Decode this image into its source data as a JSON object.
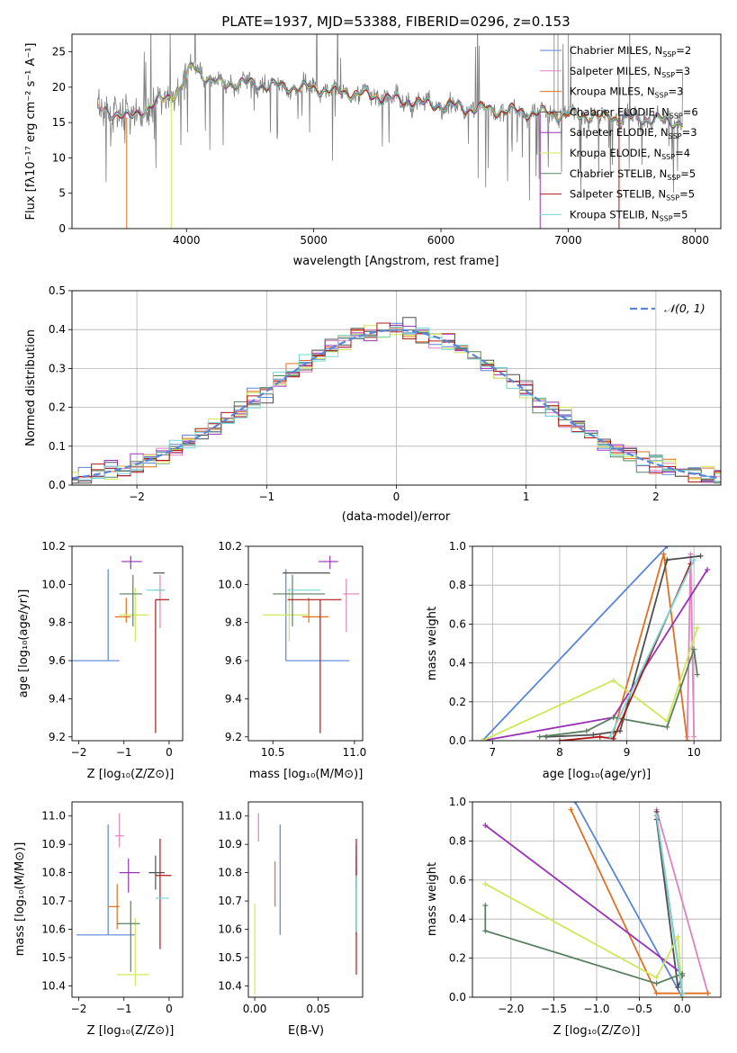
{
  "figure_title": "PLATE=1937, MJD=53388, FIBERID=0296, z=0.153",
  "series_colors": {
    "Chabrier MILES": "#5a84d6",
    "Salpeter MILES": "#e082c0",
    "Kroupa MILES": "#e07020",
    "Chabrier ELODIE": "#4f4f4f",
    "Salpeter ELODIE": "#9932b8",
    "Kroupa ELODIE": "#cfe858",
    "Chabrier STELIB": "#5a8060",
    "Salpeter STELIB": "#b01818",
    "Kroupa STELIB": "#70d8d8",
    "data": "#7f7f7f"
  },
  "chart_data": [
    {
      "id": "spectrum",
      "type": "line",
      "xlabel": "wavelength [Angstrom, rest frame]",
      "ylabel": "Flux [fλ10⁻¹⁷ erg cm⁻² s⁻¹ A⁻¹]",
      "xlim": [
        3100,
        8200
      ],
      "ylim": [
        0,
        27.5
      ],
      "xticks": [
        4000,
        5000,
        6000,
        7000,
        8000
      ],
      "yticks": [
        0,
        5,
        10,
        15,
        20,
        25
      ],
      "grid": false,
      "legend_position": "upper right",
      "legend": [
        {
          "label": "Chabrier MILES, N",
          "sub": "SSP",
          "suffix": "=2",
          "series": "Chabrier MILES"
        },
        {
          "label": "Salpeter MILES, N",
          "sub": "SSP",
          "suffix": "=3",
          "series": "Salpeter MILES"
        },
        {
          "label": "Kroupa MILES, N",
          "sub": "SSP",
          "suffix": "=3",
          "series": "Kroupa MILES"
        },
        {
          "label": "Chabrier ELODIE, N",
          "sub": "SSP",
          "suffix": "=6",
          "series": "Chabrier ELODIE"
        },
        {
          "label": "Salpeter ELODIE, N",
          "sub": "SSP",
          "suffix": "=3",
          "series": "Salpeter ELODIE"
        },
        {
          "label": "Kroupa ELODIE, N",
          "sub": "SSP",
          "suffix": "=4",
          "series": "Kroupa ELODIE"
        },
        {
          "label": "Chabrier STELIB, N",
          "sub": "SSP",
          "suffix": "=5",
          "series": "Chabrier STELIB"
        },
        {
          "label": "Salpeter STELIB, N",
          "sub": "SSP",
          "suffix": "=5",
          "series": "Salpeter STELIB"
        },
        {
          "label": "Kroupa STELIB, N",
          "sub": "SSP",
          "suffix": "=5",
          "series": "Kroupa STELIB"
        }
      ],
      "continuum": {
        "x": [
          3300,
          3450,
          3550,
          3700,
          3850,
          3950,
          4050,
          4200,
          4400,
          4700,
          5000,
          5300,
          5600,
          5900,
          6200,
          6500,
          6800,
          7100,
          7400,
          7700,
          7900
        ],
        "y": [
          16.8,
          16.3,
          15.6,
          17.2,
          18.6,
          19.6,
          23.2,
          20.6,
          20.6,
          20.2,
          19.8,
          19.2,
          18.4,
          17.6,
          17.1,
          16.7,
          16.3,
          16.0,
          15.7,
          15.4,
          15.0
        ]
      },
      "model_dropouts": [
        {
          "series": "Kroupa MILES",
          "x": 3530,
          "to_y": 0
        },
        {
          "series": "Kroupa ELODIE",
          "x": 3880,
          "to_y": 0
        },
        {
          "series": "Salpeter ELODIE",
          "x": 6780,
          "to_y": 0
        },
        {
          "series": "Salpeter STELIB",
          "x": 7400,
          "to_y": 0
        }
      ]
    },
    {
      "id": "residual-histogram",
      "type": "histogram",
      "xlabel": "(data-model)/error",
      "ylabel": "Normed distribution",
      "xlim": [
        -2.5,
        2.5
      ],
      "ylim": [
        0,
        0.5
      ],
      "xticks": [
        -2,
        -1,
        0,
        1,
        2
      ],
      "yticks": [
        0.0,
        0.1,
        0.2,
        0.3,
        0.4,
        0.5
      ],
      "grid": true,
      "bin_width": 0.1,
      "reference_curve": {
        "label": "𝒩(0, 1)",
        "mean": 0,
        "sigma": 1,
        "color": "#5a84d6",
        "style": "dashed"
      },
      "legend_position": "upper right"
    },
    {
      "id": "age-vs-Z",
      "type": "errorbar",
      "xlabel": "Z [log₁₀(Z/Z⊙)]",
      "ylabel": "age  [log₁₀(age/yr)]",
      "xlim": [
        -2.15,
        0.3
      ],
      "ylim": [
        9.18,
        10.2
      ],
      "xticks": [
        -2,
        -1,
        0
      ],
      "yticks": [
        9.2,
        9.4,
        9.6,
        9.8,
        10.0,
        10.2
      ],
      "points": [
        {
          "series": "Chabrier MILES",
          "x": -1.35,
          "xerr": [
            0.85,
            0.25
          ],
          "y": 9.6,
          "yerr": [
            0.0,
            0.48
          ]
        },
        {
          "series": "Salpeter MILES",
          "x": -0.2,
          "xerr": [
            0.1,
            0.1
          ],
          "y": 9.97,
          "yerr": [
            0.2,
            0.08
          ]
        },
        {
          "series": "Kroupa MILES",
          "x": -0.95,
          "xerr": [
            0.25,
            0.1
          ],
          "y": 9.83,
          "yerr": [
            0.03,
            0.1
          ]
        },
        {
          "series": "Chabrier ELODIE",
          "x": -0.35,
          "xerr": [
            0.0,
            0.25
          ],
          "y": 10.06,
          "yerr": [
            0.0,
            0.0
          ]
        },
        {
          "series": "Salpeter ELODIE",
          "x": -0.85,
          "xerr": [
            0.2,
            0.25
          ],
          "y": 10.12,
          "yerr": [
            0.04,
            0.03
          ]
        },
        {
          "series": "Kroupa ELODIE",
          "x": -0.75,
          "xerr": [
            0.35,
            0.3
          ],
          "y": 9.84,
          "yerr": [
            0.14,
            0.14
          ]
        },
        {
          "series": "Chabrier STELIB",
          "x": -0.8,
          "xerr": [
            0.3,
            0.2
          ],
          "y": 9.95,
          "yerr": [
            0.17,
            0.1
          ]
        },
        {
          "series": "Salpeter STELIB",
          "x": -0.3,
          "xerr": [
            0.0,
            0.3
          ],
          "y": 9.92,
          "yerr": [
            0.7,
            0.0
          ]
        },
        {
          "series": "Kroupa STELIB",
          "x": -0.3,
          "xerr": [
            0.2,
            0.2
          ],
          "y": 9.97,
          "yerr": [
            0.0,
            0.0
          ]
        }
      ]
    },
    {
      "id": "age-vs-mass",
      "type": "errorbar",
      "xlabel": "mass [log₁₀(M/M⊙)]",
      "ylabel": "",
      "xlim": [
        10.35,
        11.05
      ],
      "ylim": [
        9.18,
        10.2
      ],
      "xticks": [
        10.5,
        11.0
      ],
      "yticks": [
        9.2,
        9.4,
        9.6,
        9.8,
        10.0,
        10.2
      ],
      "points": [
        {
          "series": "Chabrier MILES",
          "x": 10.58,
          "xerr": [
            0.0,
            0.39
          ],
          "y": 9.6,
          "yerr": [
            0.0,
            0.48
          ]
        },
        {
          "series": "Salpeter MILES",
          "x": 10.95,
          "xerr": [
            0.02,
            0.08
          ],
          "y": 9.95,
          "yerr": [
            0.2,
            0.08
          ]
        },
        {
          "series": "Kroupa MILES",
          "x": 10.72,
          "xerr": [
            0.04,
            0.12
          ],
          "y": 9.83,
          "yerr": [
            0.03,
            0.1
          ]
        },
        {
          "series": "Chabrier ELODIE",
          "x": 10.8,
          "xerr": [
            0.24,
            0.05
          ],
          "y": 10.06,
          "yerr": [
            0.0,
            0.0
          ]
        },
        {
          "series": "Salpeter ELODIE",
          "x": 10.85,
          "xerr": [
            0.07,
            0.05
          ],
          "y": 10.12,
          "yerr": [
            0.04,
            0.03
          ]
        },
        {
          "series": "Kroupa ELODIE",
          "x": 10.6,
          "xerr": [
            0.16,
            0.12
          ],
          "y": 9.84,
          "yerr": [
            0.14,
            0.14
          ]
        },
        {
          "series": "Chabrier STELIB",
          "x": 10.62,
          "xerr": [
            0.12,
            0.2
          ],
          "y": 9.95,
          "yerr": [
            0.17,
            0.1
          ]
        },
        {
          "series": "Salpeter STELIB",
          "x": 10.79,
          "xerr": [
            0.2,
            0.13
          ],
          "y": 9.92,
          "yerr": [
            0.7,
            0.0
          ]
        },
        {
          "series": "Kroupa STELIB",
          "x": 10.71,
          "xerr": [
            0.12,
            0.08
          ],
          "y": 9.97,
          "yerr": [
            0.0,
            0.0
          ]
        }
      ]
    },
    {
      "id": "mass-weight-vs-age",
      "type": "line",
      "xlabel": "age  [log₁₀(age/yr)]",
      "ylabel": "mass weight",
      "xlim": [
        6.7,
        10.4
      ],
      "ylim": [
        0,
        1.0
      ],
      "xticks": [
        7,
        8,
        9,
        10
      ],
      "yticks": [
        0.0,
        0.2,
        0.4,
        0.6,
        0.8,
        1.0
      ],
      "grid": true,
      "series": [
        {
          "name": "Chabrier MILES",
          "x": [
            6.85,
            9.6
          ],
          "y": [
            0.0,
            1.0
          ]
        },
        {
          "name": "Salpeter MILES",
          "x": [
            9.9,
            9.95,
            10.0
          ],
          "y": [
            0.02,
            0.96,
            0.02
          ]
        },
        {
          "name": "Kroupa MILES",
          "x": [
            8.8,
            9.55,
            9.9
          ],
          "y": [
            0.04,
            0.96,
            0.0
          ]
        },
        {
          "name": "Chabrier ELODIE",
          "x": [
            7.8,
            8.5,
            8.9,
            9.6,
            10.1
          ],
          "y": [
            0.02,
            0.03,
            0.05,
            0.93,
            0.95
          ]
        },
        {
          "name": "Salpeter ELODIE",
          "x": [
            6.85,
            8.8,
            10.2
          ],
          "y": [
            0.0,
            0.12,
            0.88
          ]
        },
        {
          "name": "Kroupa ELODIE",
          "x": [
            6.85,
            8.8,
            9.6,
            10.05
          ],
          "y": [
            0.0,
            0.31,
            0.1,
            0.58
          ]
        },
        {
          "name": "Chabrier STELIB",
          "x": [
            7.7,
            8.4,
            8.8,
            9.6,
            10.0,
            10.05
          ],
          "y": [
            0.02,
            0.05,
            0.12,
            0.07,
            0.47,
            0.34
          ]
        },
        {
          "name": "Salpeter STELIB",
          "x": [
            8.0,
            8.6,
            8.8,
            9.95
          ],
          "y": [
            0.0,
            0.02,
            0.01,
            0.91
          ]
        },
        {
          "name": "Kroupa STELIB",
          "x": [
            8.75,
            10.0
          ],
          "y": [
            0.02,
            0.93
          ]
        }
      ]
    },
    {
      "id": "mass-vs-Z",
      "type": "errorbar",
      "xlabel": "Z [log₁₀(Z/Z⊙)]",
      "ylabel": "mass [log₁₀(M/M⊙)]",
      "xlim": [
        -2.15,
        0.3
      ],
      "ylim": [
        10.36,
        11.05
      ],
      "xticks": [
        -2,
        -1,
        0
      ],
      "yticks": [
        10.4,
        10.5,
        10.6,
        10.7,
        10.8,
        10.9,
        11.0
      ],
      "points": [
        {
          "series": "Chabrier MILES",
          "x": -1.35,
          "xerr": [
            0.7,
            0.6
          ],
          "y": 10.58,
          "yerr": [
            0.0,
            0.39
          ]
        },
        {
          "series": "Salpeter MILES",
          "x": -1.1,
          "xerr": [
            0.1,
            0.1
          ],
          "y": 10.93,
          "yerr": [
            0.04,
            0.08
          ]
        },
        {
          "series": "Kroupa MILES",
          "x": -1.15,
          "xerr": [
            0.2,
            0.05
          ],
          "y": 10.68,
          "yerr": [
            0.08,
            0.08
          ]
        },
        {
          "series": "Chabrier ELODIE",
          "x": -0.3,
          "xerr": [
            0.15,
            0.2
          ],
          "y": 10.8,
          "yerr": [
            0.06,
            0.06
          ]
        },
        {
          "series": "Salpeter ELODIE",
          "x": -0.9,
          "xerr": [
            0.2,
            0.25
          ],
          "y": 10.8,
          "yerr": [
            0.07,
            0.05
          ]
        },
        {
          "series": "Kroupa ELODIE",
          "x": -0.75,
          "xerr": [
            0.4,
            0.3
          ],
          "y": 10.44,
          "yerr": [
            0.04,
            0.2
          ]
        },
        {
          "series": "Chabrier STELIB",
          "x": -0.85,
          "xerr": [
            0.3,
            0.2
          ],
          "y": 10.62,
          "yerr": [
            0.17,
            0.08
          ]
        },
        {
          "series": "Salpeter STELIB",
          "x": -0.2,
          "xerr": [
            0.1,
            0.25
          ],
          "y": 10.79,
          "yerr": [
            0.26,
            0.13
          ]
        },
        {
          "series": "Kroupa STELIB",
          "x": -0.3,
          "xerr": [
            0.0,
            0.3
          ],
          "y": 10.71,
          "yerr": [
            0.0,
            0.0
          ]
        }
      ]
    },
    {
      "id": "mass-vs-ebv",
      "type": "errorbar",
      "xlabel": "E(B-V)",
      "ylabel": "",
      "xlim": [
        -0.005,
        0.085
      ],
      "ylim": [
        10.36,
        11.05
      ],
      "xticks": [
        0.0,
        0.05
      ],
      "yticks": [
        10.4,
        10.5,
        10.6,
        10.7,
        10.8,
        10.9,
        11.0
      ],
      "points": [
        {
          "series": "Chabrier MILES",
          "x": 0.02,
          "xerr": [
            0,
            0
          ],
          "y": 10.58,
          "yerr": [
            0.0,
            0.39
          ]
        },
        {
          "series": "Salpeter MILES",
          "x": 0.003,
          "xerr": [
            0,
            0
          ],
          "y": 10.93,
          "yerr": [
            0.02,
            0.08
          ]
        },
        {
          "series": "Kroupa MILES",
          "x": 0.016,
          "xerr": [
            0,
            0
          ],
          "y": 10.72,
          "yerr": [
            0.04,
            0.12
          ]
        },
        {
          "series": "Chabrier ELODIE",
          "x": 0.08,
          "xerr": [
            0,
            0
          ],
          "y": 10.8,
          "yerr": [
            0.06,
            0.06
          ]
        },
        {
          "series": "Salpeter ELODIE",
          "x": 0.08,
          "xerr": [
            0,
            0
          ],
          "y": 10.85,
          "yerr": [
            0.07,
            0.05
          ]
        },
        {
          "series": "Kroupa ELODIE",
          "x": 0.0,
          "xerr": [
            0,
            0
          ],
          "y": 10.55,
          "yerr": [
            0.18,
            0.14
          ]
        },
        {
          "series": "Chabrier STELIB",
          "x": 0.08,
          "xerr": [
            0,
            0
          ],
          "y": 10.7,
          "yerr": [
            0.12,
            0.12
          ]
        },
        {
          "series": "Salpeter STELIB",
          "x": 0.08,
          "xerr": [
            0,
            0
          ],
          "y": 10.79,
          "yerr": [
            0.35,
            0.13
          ]
        },
        {
          "series": "Kroupa STELIB",
          "x": 0.08,
          "xerr": [
            0,
            0
          ],
          "y": 10.71,
          "yerr": [
            0.12,
            0.08
          ]
        }
      ]
    },
    {
      "id": "mass-weight-vs-Z",
      "type": "line",
      "xlabel": "Z [log₁₀(Z/Z⊙)]",
      "ylabel": "mass weight",
      "xlim": [
        -2.45,
        0.45
      ],
      "ylim": [
        0,
        1.0
      ],
      "xticks": [
        -2.0,
        -1.5,
        -1.0,
        -0.5,
        0.0
      ],
      "yticks": [
        0.0,
        0.2,
        0.4,
        0.6,
        0.8,
        1.0
      ],
      "grid": true,
      "series": [
        {
          "name": "Chabrier MILES",
          "x": [
            -1.25,
            0.0
          ],
          "y": [
            1.0,
            0.0
          ]
        },
        {
          "name": "Salpeter MILES",
          "x": [
            -0.3,
            0.3
          ],
          "y": [
            0.96,
            0.02
          ]
        },
        {
          "name": "Kroupa MILES",
          "x": [
            -1.3,
            -0.3,
            0.3
          ],
          "y": [
            0.96,
            0.02,
            0.02
          ]
        },
        {
          "name": "Chabrier ELODIE",
          "x": [
            -0.3,
            -0.3,
            -0.05,
            0.0
          ],
          "y": [
            0.95,
            0.91,
            0.05,
            0.11
          ]
        },
        {
          "name": "Salpeter ELODIE",
          "x": [
            -2.3,
            0.0
          ],
          "y": [
            0.88,
            0.12
          ]
        },
        {
          "name": "Kroupa ELODIE",
          "x": [
            -2.3,
            -0.3,
            -0.05,
            0.0
          ],
          "y": [
            0.58,
            0.1,
            0.31,
            0.0
          ]
        },
        {
          "name": "Chabrier STELIB",
          "x": [
            -2.3,
            -2.3,
            -0.3,
            0.0
          ],
          "y": [
            0.47,
            0.34,
            0.07,
            0.12
          ]
        },
        {
          "name": "Salpeter STELIB",
          "x": [
            -0.3,
            0.0
          ],
          "y": [
            0.93,
            0.02
          ]
        },
        {
          "name": "Kroupa STELIB",
          "x": [
            -0.3,
            0.0
          ],
          "y": [
            0.93,
            0.02
          ]
        }
      ]
    }
  ]
}
